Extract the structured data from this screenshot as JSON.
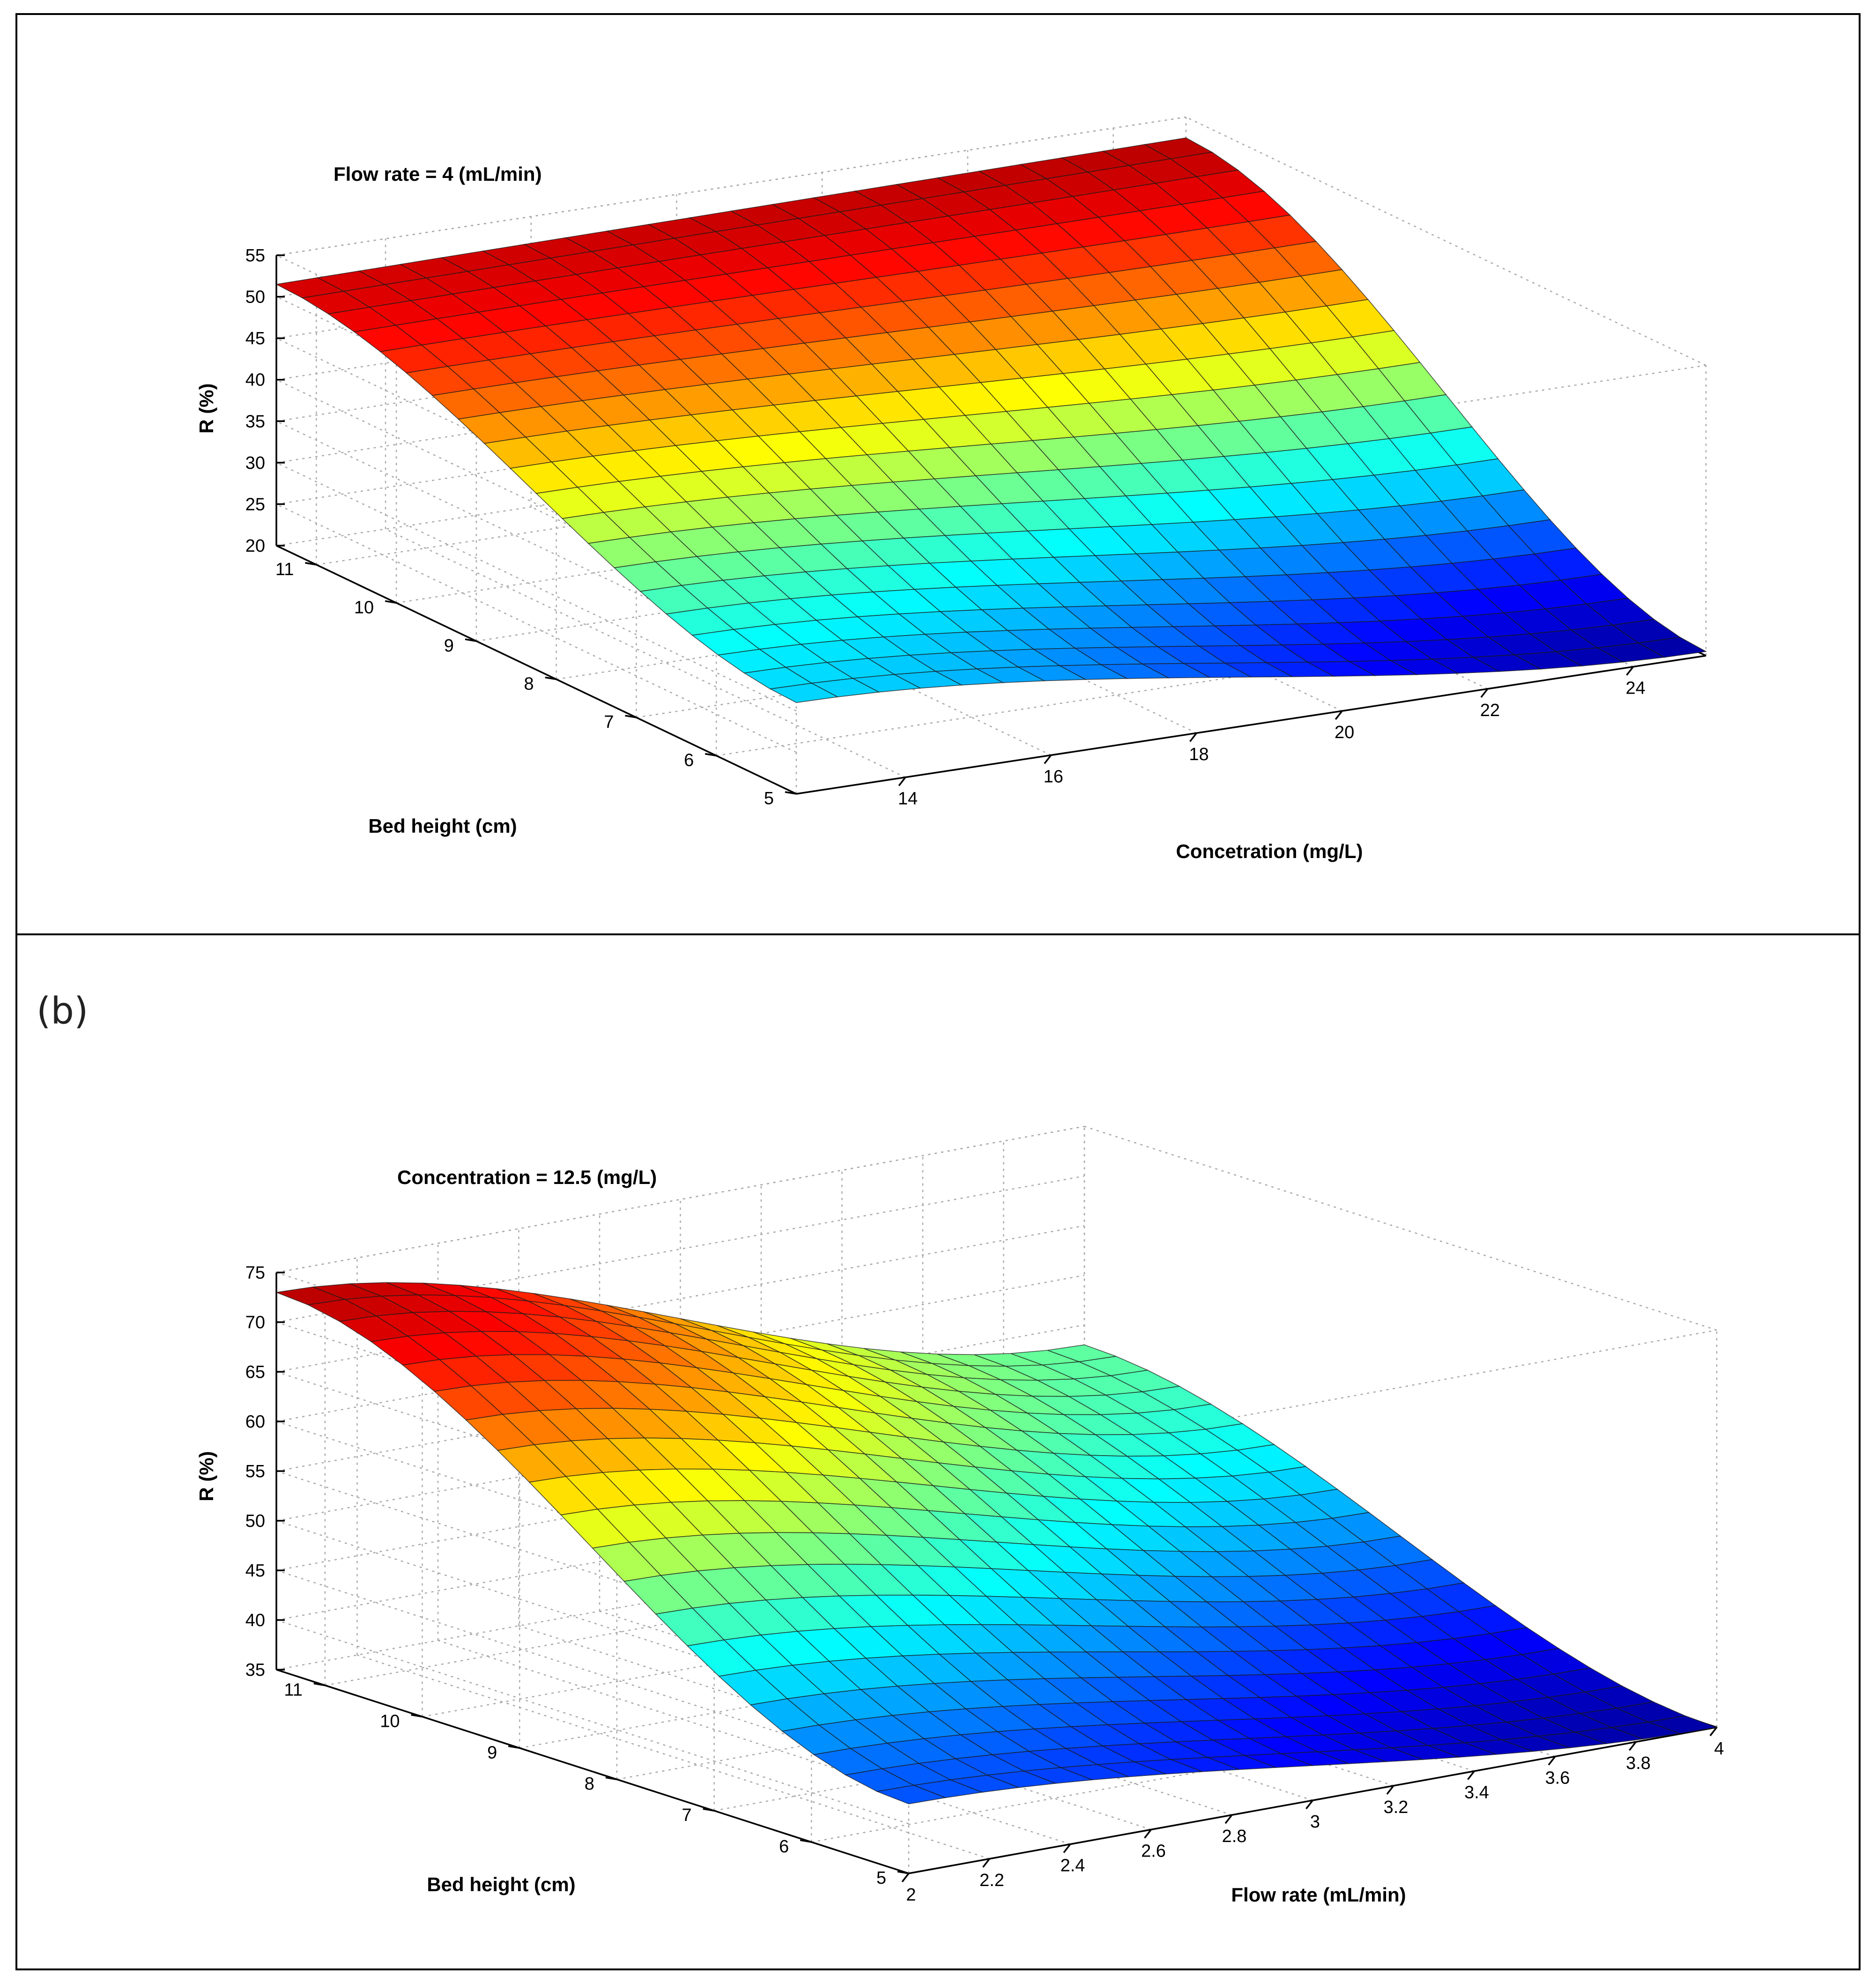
{
  "panel_b_label": "(b)",
  "chart_data": [
    {
      "type": "surface",
      "annotation": "Flow rate = 4 (mL/min)",
      "zlabel": "R (%)",
      "xlabel": "Concetration (mg/L)",
      "ylabel": "Bed height (cm)",
      "x_ticks": [
        "14",
        "16",
        "18",
        "20",
        "22",
        "24"
      ],
      "y_ticks": [
        "5",
        "6",
        "7",
        "8",
        "9",
        "10",
        "11"
      ],
      "z_ticks": [
        "20",
        "25",
        "30",
        "35",
        "40",
        "45",
        "50",
        "55"
      ],
      "xlim": [
        12.5,
        25
      ],
      "ylim": [
        5,
        11.5
      ],
      "zlim": [
        20,
        55
      ],
      "corner_values": {
        "low_x_low_y": 31,
        "low_x_high_y": 51.5,
        "high_x_low_y": 20.5,
        "high_x_high_y": 52.5
      },
      "colormap": "jet"
    },
    {
      "type": "surface",
      "annotation": "Concentration = 12.5 (mg/L)",
      "zlabel": "R (%)",
      "xlabel": "Flow rate (mL/min)",
      "ylabel": "Bed height (cm)",
      "x_ticks": [
        "2",
        "2.2",
        "2.4",
        "2.6",
        "2.8",
        "3",
        "3.2",
        "3.4",
        "3.6",
        "3.8",
        "4"
      ],
      "y_ticks": [
        "5",
        "6",
        "7",
        "8",
        "9",
        "10",
        "11"
      ],
      "z_ticks": [
        "35",
        "40",
        "45",
        "50",
        "55",
        "60",
        "65",
        "70",
        "75"
      ],
      "xlim": [
        2,
        4
      ],
      "ylim": [
        5,
        11.5
      ],
      "zlim": [
        35,
        75
      ],
      "corner_values": {
        "low_x_low_y": 42,
        "low_x_high_y": 73,
        "high_x_low_y": 35,
        "high_x_high_y": 53
      },
      "colormap": "jet"
    }
  ]
}
